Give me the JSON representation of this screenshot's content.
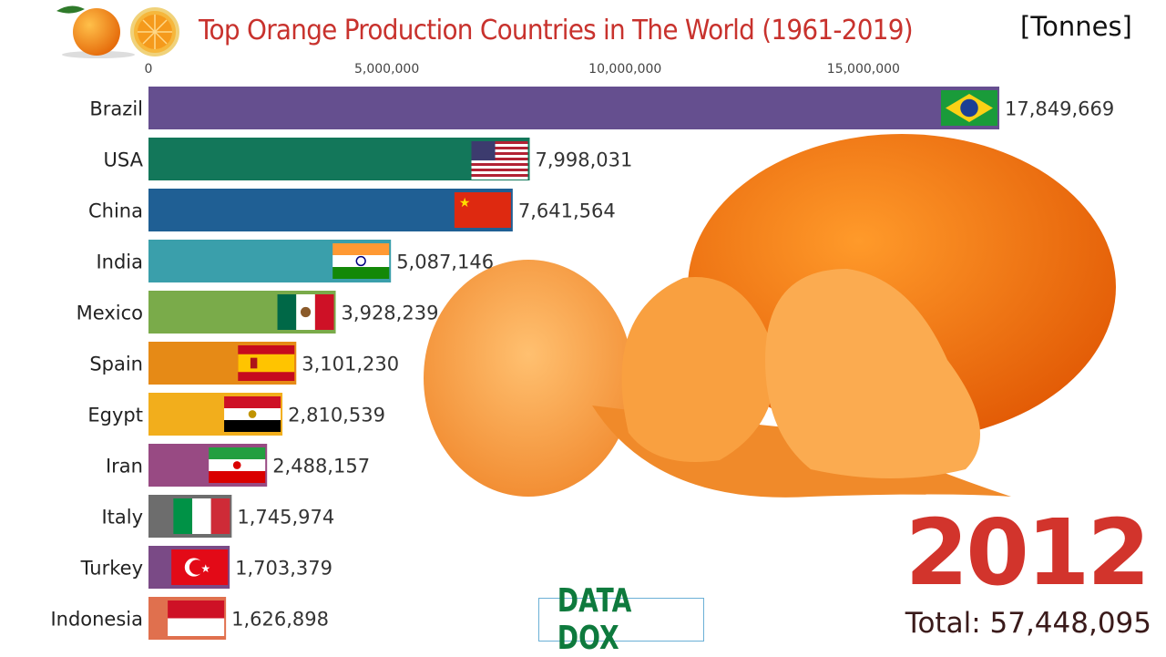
{
  "title": "Top Orange Production Countries in The World (1961-2019)",
  "unit": "[Tonnes]",
  "year": "2012",
  "total": "Total: 57,448,095",
  "brand": "DATA DOX",
  "chart_data": {
    "type": "bar",
    "orientation": "horizontal",
    "title": "Top Orange Production Countries in The World (1961-2019)",
    "xlim": [
      0,
      17849669
    ],
    "xticks": [
      0,
      5000000,
      10000000,
      15000000
    ],
    "xtick_labels": [
      "0",
      "5,000,000",
      "10,000,000",
      "15,000,000"
    ],
    "categories": [
      "Brazil",
      "USA",
      "China",
      "India",
      "Mexico",
      "Spain",
      "Egypt",
      "Iran",
      "Italy",
      "Turkey",
      "Indonesia"
    ],
    "values": [
      17849669,
      7998031,
      7641564,
      5087146,
      3928239,
      3101230,
      2810539,
      2488157,
      1745974,
      1703379,
      1626898
    ],
    "value_labels": [
      "17,849,669",
      "7,998,031",
      "7,641,564",
      "5,087,146",
      "3,928,239",
      "3,101,230",
      "2,810,539",
      "2,488,157",
      "1,745,974",
      "1,703,379",
      "1,626,898"
    ],
    "colors": [
      "#654f8f",
      "#13775a",
      "#1f5f94",
      "#3a9fab",
      "#7aab4a",
      "#e68a16",
      "#f2ae1c",
      "#984a83",
      "#6d6d6d",
      "#7a4a86",
      "#e0704e"
    ],
    "flag_icons": [
      "brazil-flag",
      "usa-flag",
      "china-flag",
      "india-flag",
      "mexico-flag",
      "spain-flag",
      "egypt-flag",
      "iran-flag",
      "italy-flag",
      "turkey-flag",
      "indonesia-flag"
    ]
  }
}
